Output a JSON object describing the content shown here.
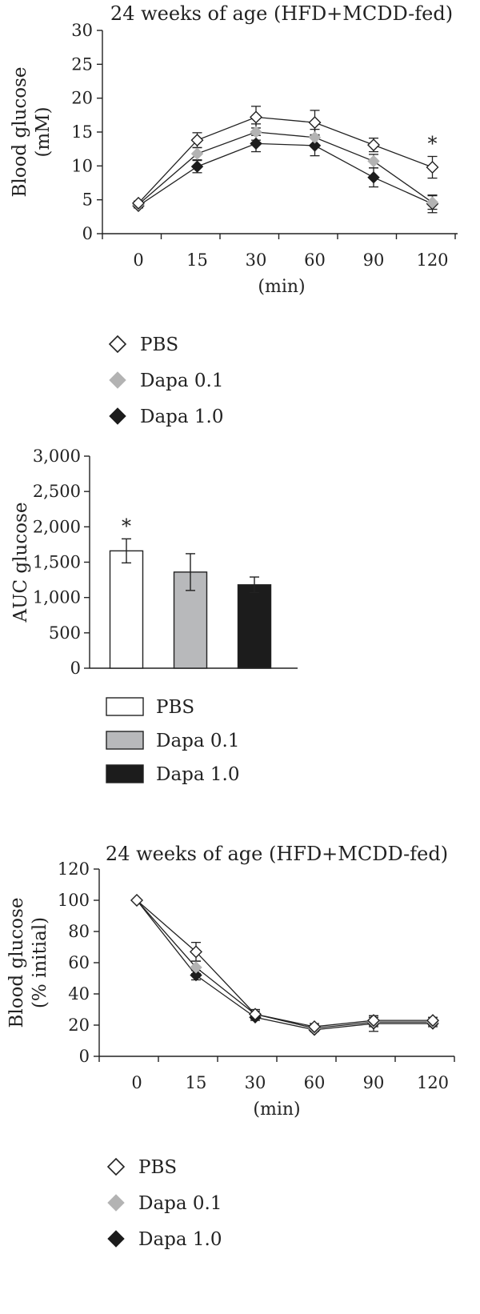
{
  "chart_data": [
    {
      "type": "line",
      "title": "24 weeks of age (HFD+MCDD-fed)",
      "xlabel": "(min)",
      "ylabel_lines": [
        "Blood glucose",
        "(mM)"
      ],
      "categories": [
        "0",
        "15",
        "30",
        "60",
        "90",
        "120"
      ],
      "ylim": [
        0,
        30
      ],
      "yticks": [
        "0",
        "5",
        "10",
        "15",
        "20",
        "25",
        "30"
      ],
      "grid": false,
      "legend_position": "below",
      "series": [
        {
          "name": "PBS",
          "marker": "diamond-open",
          "color": "#ffffff",
          "values": [
            4.5,
            13.8,
            17.2,
            16.4,
            13.1,
            9.8
          ],
          "errors": [
            0.3,
            1.1,
            1.6,
            1.8,
            1.0,
            1.6
          ]
        },
        {
          "name": "Dapa 0.1",
          "marker": "diamond-filled",
          "color": "#b3b3b3",
          "values": [
            4.3,
            11.8,
            15.0,
            14.2,
            10.7,
            4.6
          ],
          "errors": [
            0.3,
            0.9,
            1.2,
            1.2,
            1.0,
            1.0
          ]
        },
        {
          "name": "Dapa 1.0",
          "marker": "diamond-filled",
          "color": "#1c1c1c",
          "values": [
            4.1,
            9.9,
            13.3,
            13.0,
            8.3,
            4.4
          ],
          "errors": [
            0.3,
            0.9,
            1.2,
            1.5,
            1.4,
            1.3
          ]
        }
      ],
      "annotations": [
        {
          "category": "120",
          "text": "*"
        }
      ]
    },
    {
      "type": "bar",
      "ylabel": "AUC glucose",
      "categories": [
        "PBS",
        "Dapa 0.1",
        "Dapa 1.0"
      ],
      "values": [
        1660,
        1360,
        1180
      ],
      "errors": [
        170,
        260,
        110
      ],
      "colors": [
        "#ffffff",
        "#b8b9bb",
        "#1c1c1c"
      ],
      "ylim": [
        0,
        3000
      ],
      "yticks": [
        "0",
        "500",
        "1,000",
        "1,500",
        "2,000",
        "2,500",
        "3,000"
      ],
      "grid": false,
      "legend_position": "below",
      "annotations": [
        {
          "category": "PBS",
          "text": "*"
        }
      ]
    },
    {
      "type": "line",
      "title": "24 weeks of age (HFD+MCDD-fed)",
      "xlabel": "(min)",
      "ylabel_lines": [
        "Blood glucose",
        "(% initial)"
      ],
      "categories": [
        "0",
        "15",
        "30",
        "60",
        "90",
        "120"
      ],
      "ylim": [
        0,
        120
      ],
      "yticks": [
        "0",
        "20",
        "40",
        "60",
        "80",
        "100",
        "120"
      ],
      "grid": false,
      "legend_position": "below",
      "series": [
        {
          "name": "PBS",
          "marker": "diamond-open",
          "color": "#ffffff",
          "values": [
            100,
            67,
            27,
            19,
            23,
            23
          ],
          "errors": [
            0,
            6,
            3,
            2,
            3,
            2
          ]
        },
        {
          "name": "Dapa 0.1",
          "marker": "diamond-filled",
          "color": "#b3b3b3",
          "values": [
            100,
            57,
            27,
            18,
            22,
            22
          ],
          "errors": [
            0,
            4,
            2,
            2,
            3,
            2
          ]
        },
        {
          "name": "Dapa 1.0",
          "marker": "diamond-filled",
          "color": "#1c1c1c",
          "values": [
            100,
            52,
            25,
            17,
            21,
            21
          ],
          "errors": [
            0,
            3,
            2,
            1,
            5,
            2
          ]
        }
      ],
      "annotations": []
    }
  ]
}
